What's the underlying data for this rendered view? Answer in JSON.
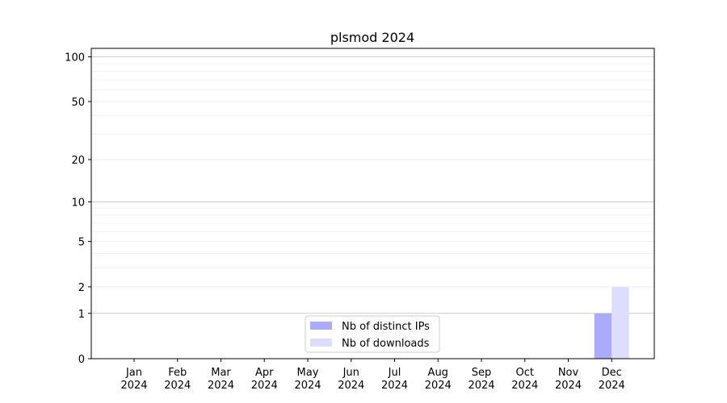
{
  "chart_data": {
    "type": "bar",
    "title": "plsmod 2024",
    "xlabel": "",
    "ylabel": "",
    "yscale": "symlog",
    "ylim": [
      0,
      114
    ],
    "yticks": [
      0,
      1,
      2,
      5,
      10,
      20,
      50,
      100
    ],
    "ytick_labels": [
      "0",
      "1",
      "2",
      "5",
      "10",
      "20",
      "50",
      "100"
    ],
    "grid": true,
    "legend_position": "lower center",
    "categories": [
      "Jan\n2024",
      "Feb\n2024",
      "Mar\n2024",
      "Apr\n2024",
      "May\n2024",
      "Jun\n2024",
      "Jul\n2024",
      "Aug\n2024",
      "Sep\n2024",
      "Oct\n2024",
      "Nov\n2024",
      "Dec\n2024"
    ],
    "series": [
      {
        "name": "Nb of distinct IPs",
        "color": "#aaaaff",
        "values": [
          0,
          0,
          0,
          0,
          0,
          0,
          0,
          0,
          0,
          0,
          0,
          1
        ]
      },
      {
        "name": "Nb of downloads",
        "color": "#ddddff",
        "values": [
          0,
          0,
          0,
          0,
          0,
          0,
          0,
          0,
          0,
          0,
          0,
          2
        ]
      }
    ]
  }
}
